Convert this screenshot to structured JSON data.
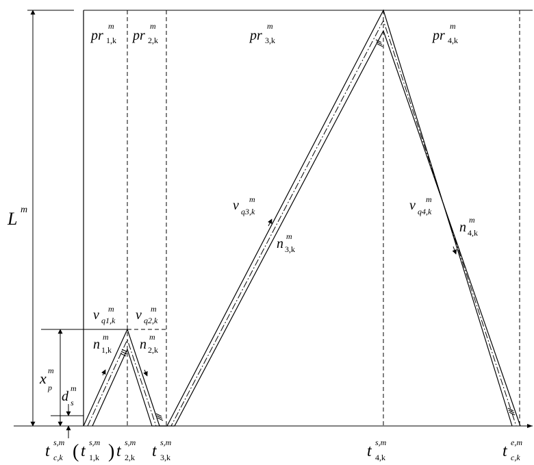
{
  "region_labels": {
    "pr1": {
      "base": "pr",
      "sup": "m",
      "sub": "1,k"
    },
    "pr2": {
      "base": "pr",
      "sup": "m",
      "sub": "2,k"
    },
    "pr3": {
      "base": "pr",
      "sup": "m",
      "sub": "3,k"
    },
    "pr4": {
      "base": "pr",
      "sup": "m",
      "sub": "4,k"
    }
  },
  "speed_labels": {
    "vq1": {
      "base": "v",
      "sup": "m",
      "sub": "q1,k"
    },
    "vq2": {
      "base": "v",
      "sup": "m",
      "sub": "q2,k"
    },
    "vq3": {
      "base": "v",
      "sup": "m",
      "sub": "q3,k"
    },
    "vq4": {
      "base": "v",
      "sup": "m",
      "sub": "q4,k"
    }
  },
  "count_labels": {
    "n1": {
      "base": "n",
      "sup": "m",
      "sub": "1,k"
    },
    "n2": {
      "base": "n",
      "sup": "m",
      "sub": "2,k"
    },
    "n3": {
      "base": "n",
      "sup": "m",
      "sub": "3,k"
    },
    "n4": {
      "base": "n",
      "sup": "m",
      "sub": "4,k"
    }
  },
  "dimension_labels": {
    "L": {
      "base": "L",
      "sup": "m"
    },
    "xp": {
      "base": "x",
      "sup": "m",
      "sub": "p"
    },
    "ds": {
      "base": "d",
      "sup": "m",
      "sub": "s"
    }
  },
  "time_labels": {
    "tc_start": {
      "base": "t",
      "sup": "s,m",
      "sub": "c,k"
    },
    "t1_paren_open": "(",
    "t1": {
      "base": "t",
      "sup": "s,m",
      "sub": "1,k"
    },
    "t1_paren_close": ")",
    "t2": {
      "base": "t",
      "sup": "s,m",
      "sub": "2,k"
    },
    "t3": {
      "base": "t",
      "sup": "s,m",
      "sub": "3,k"
    },
    "t4": {
      "base": "t",
      "sup": "s,m",
      "sub": "4,k"
    },
    "tc_end": {
      "base": "t",
      "sup": "e,m",
      "sub": "c,k"
    }
  }
}
